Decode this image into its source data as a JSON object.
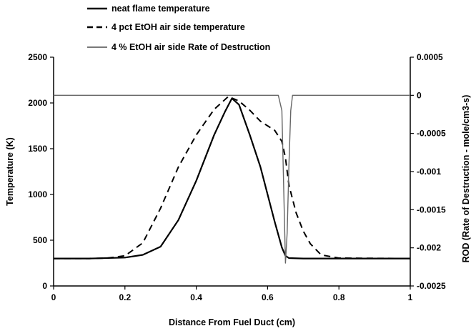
{
  "chart_data": {
    "type": "line",
    "title": "",
    "xlabel": "Distance From Fuel Duct (cm)",
    "ylabel": "Temperature (K)",
    "y2label": "ROD (Rate of Destruction - mole/cm3-s)",
    "xlim": [
      0,
      1
    ],
    "ylim": [
      0,
      2500
    ],
    "y2lim": [
      -0.0025,
      0.0005
    ],
    "x_ticks": [
      "0",
      "0.2",
      "0.4",
      "0.6",
      "0.8",
      "1"
    ],
    "y_ticks": [
      "0",
      "500",
      "1000",
      "1500",
      "2000",
      "2500"
    ],
    "y2_ticks": [
      "0.0005",
      "0",
      "-0.0005",
      "-0.001",
      "-0.0015",
      "-0.002",
      "-0.0025"
    ],
    "grid": false,
    "legend_position": "top-left",
    "series": [
      {
        "name": "neat flame temperature",
        "axis": "left",
        "style": "solid-thick",
        "color": "#000000",
        "x": [
          0,
          0.1,
          0.2,
          0.25,
          0.3,
          0.35,
          0.4,
          0.45,
          0.48,
          0.5,
          0.52,
          0.55,
          0.58,
          0.6,
          0.62,
          0.64,
          0.65,
          0.66,
          0.7,
          0.8,
          1.0
        ],
        "y": [
          300,
          300,
          310,
          340,
          430,
          720,
          1150,
          1650,
          1900,
          2050,
          1980,
          1650,
          1300,
          1000,
          700,
          420,
          330,
          305,
          300,
          300,
          300
        ]
      },
      {
        "name": "4 pct EtOH air side temperature",
        "axis": "left",
        "style": "dashed",
        "color": "#000000",
        "x": [
          0,
          0.1,
          0.15,
          0.2,
          0.25,
          0.3,
          0.35,
          0.4,
          0.45,
          0.49,
          0.52,
          0.55,
          0.58,
          0.6,
          0.62,
          0.64,
          0.65,
          0.66,
          0.68,
          0.7,
          0.72,
          0.75,
          0.8,
          1.0
        ],
        "y": [
          300,
          300,
          305,
          330,
          470,
          850,
          1300,
          1650,
          1930,
          2070,
          2020,
          1920,
          1800,
          1750,
          1700,
          1580,
          1400,
          1100,
          800,
          600,
          460,
          340,
          305,
          300
        ]
      },
      {
        "name": "4 % EtOH air side Rate of Destruction",
        "axis": "right",
        "style": "solid-thin",
        "color": "#666666",
        "x": [
          0,
          0.6,
          0.63,
          0.64,
          0.645,
          0.65,
          0.655,
          0.66,
          0.665,
          0.67,
          1.0
        ],
        "y": [
          0,
          0,
          0,
          -0.0002,
          -0.0012,
          -0.0022,
          -0.0018,
          -0.0009,
          -0.0002,
          0,
          0
        ]
      }
    ]
  }
}
